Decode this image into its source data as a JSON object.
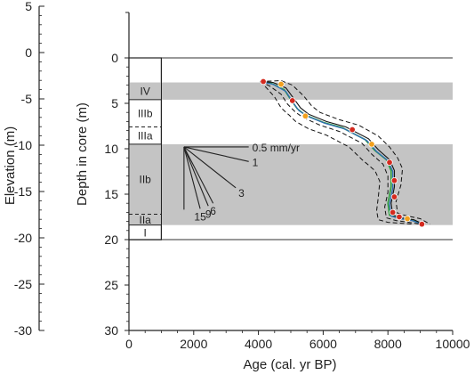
{
  "chart_data": {
    "type": "line",
    "xlabel": "Age (cal. yr BP)",
    "ylabel": "Depth in core (m)",
    "elevation_label": "Elevation (m)",
    "xlim": [
      0,
      10000
    ],
    "ylim": [
      0,
      30
    ],
    "elevation_lim": [
      5,
      -30
    ],
    "x_ticks": [
      0,
      2000,
      4000,
      6000,
      8000,
      10000
    ],
    "y_ticks": [
      0,
      5,
      10,
      15,
      20,
      25,
      30
    ],
    "elevation_ticks": [
      5,
      0,
      -5,
      -10,
      -15,
      -20,
      -25,
      -30
    ],
    "grid": false,
    "colors": {
      "band": "#c4c4c4",
      "model_green": "#2e9e3e",
      "model_blue": "#2f6db5",
      "dates_red": "#d42a1f",
      "dates_orange": "#f2a01d",
      "envelope": "#222222"
    },
    "units": [
      {
        "name": "IV",
        "top": 2.7,
        "bottom": 4.6
      },
      {
        "name": "IIIb",
        "top": 4.6,
        "bottom": 7.6
      },
      {
        "name": "IIIa",
        "top": 7.6,
        "bottom": 9.5
      },
      {
        "name": "IIb",
        "top": 9.5,
        "bottom": 17.2
      },
      {
        "name": "IIa",
        "top": 17.2,
        "bottom": 18.4
      },
      {
        "name": "I",
        "top": 18.4,
        "bottom": 20.0
      }
    ],
    "shaded_bands": [
      {
        "top": 2.7,
        "bottom": 4.6
      },
      {
        "top": 9.5,
        "bottom": 18.4
      }
    ],
    "core_bottom": 20.0,
    "rate_fan": {
      "origin": [
        1700,
        9.8
      ],
      "lines": [
        {
          "label": "0.5 mm/yr",
          "end": [
            3700,
            9.8
          ]
        },
        {
          "label": "1",
          "end": [
            3700,
            11.4
          ]
        },
        {
          "label": "3",
          "end": [
            3300,
            14.3
          ]
        },
        {
          "label": "6",
          "end": [
            2600,
            16.0
          ]
        },
        {
          "label": "9",
          "end": [
            2450,
            16.3
          ]
        },
        {
          "label": "15",
          "end": [
            2200,
            16.6
          ]
        },
        {
          "label": "",
          "end": [
            1700,
            16.7
          ]
        }
      ]
    },
    "series": [
      {
        "values": [
          [
            4050,
            2.6
          ],
          [
            4400,
            2.8
          ],
          [
            4800,
            3.5
          ],
          [
            5000,
            4.6
          ],
          [
            5200,
            5.6
          ],
          [
            5450,
            6.3
          ],
          [
            6000,
            7.1
          ],
          [
            6600,
            7.7
          ],
          [
            7300,
            9.0
          ],
          [
            7600,
            10.2
          ],
          [
            7950,
            11.2
          ],
          [
            8100,
            12.4
          ],
          [
            8100,
            14.2
          ],
          [
            8000,
            16.0
          ],
          [
            8050,
            17.3
          ],
          [
            8300,
            17.6
          ],
          [
            8700,
            17.8
          ],
          [
            9050,
            18.3
          ]
        ]
      },
      {
        "values": [
          [
            4050,
            2.6
          ],
          [
            4450,
            2.9
          ],
          [
            4850,
            3.7
          ],
          [
            5050,
            4.8
          ],
          [
            5250,
            5.8
          ],
          [
            5500,
            6.4
          ],
          [
            6050,
            7.2
          ],
          [
            6650,
            7.8
          ],
          [
            7350,
            9.1
          ],
          [
            7650,
            10.3
          ],
          [
            8000,
            11.3
          ],
          [
            8150,
            12.5
          ],
          [
            8150,
            14.3
          ],
          [
            8050,
            16.1
          ],
          [
            8100,
            17.4
          ],
          [
            8350,
            17.7
          ],
          [
            8750,
            17.9
          ],
          [
            9050,
            18.3
          ]
        ]
      },
      {
        "values": [
          [
            4050,
            2.6
          ],
          [
            4450,
            2.7
          ],
          [
            4850,
            3.3
          ],
          [
            5100,
            4.5
          ],
          [
            5300,
            5.5
          ],
          [
            5550,
            6.2
          ],
          [
            6100,
            7.0
          ],
          [
            6700,
            7.6
          ],
          [
            7400,
            8.9
          ],
          [
            7700,
            10.1
          ],
          [
            8050,
            11.2
          ],
          [
            8200,
            12.4
          ],
          [
            8200,
            14.2
          ],
          [
            8100,
            16.0
          ],
          [
            8150,
            17.3
          ],
          [
            8400,
            17.6
          ],
          [
            8800,
            17.8
          ],
          [
            9100,
            18.3
          ]
        ]
      },
      {
        "values": [
          [
            4050,
            2.6
          ],
          [
            4350,
            3.1
          ],
          [
            4700,
            4.0
          ],
          [
            4900,
            5.1
          ],
          [
            5150,
            6.0
          ],
          [
            5400,
            6.6
          ],
          [
            5900,
            7.4
          ],
          [
            6500,
            8.1
          ],
          [
            7200,
            9.4
          ],
          [
            7500,
            10.6
          ],
          [
            7850,
            11.7
          ],
          [
            8000,
            13.0
          ],
          [
            8000,
            14.8
          ],
          [
            7900,
            16.4
          ],
          [
            7950,
            17.6
          ],
          [
            8250,
            17.9
          ],
          [
            8650,
            18.1
          ],
          [
            9000,
            18.3
          ]
        ]
      },
      {
        "values": [
          [
            4050,
            2.6
          ],
          [
            4700,
            2.5
          ],
          [
            5050,
            3.0
          ],
          [
            5400,
            4.2
          ],
          [
            5650,
            5.3
          ],
          [
            5900,
            6.0
          ],
          [
            6500,
            6.8
          ],
          [
            7100,
            7.4
          ],
          [
            7700,
            8.6
          ],
          [
            8050,
            9.8
          ],
          [
            8300,
            11.0
          ],
          [
            8450,
            12.2
          ],
          [
            8400,
            14.0
          ],
          [
            8250,
            15.8
          ],
          [
            8300,
            17.1
          ],
          [
            8600,
            17.4
          ],
          [
            9000,
            17.7
          ],
          [
            9300,
            18.3
          ]
        ]
      },
      {
        "values": [
          [
            4050,
            2.6
          ],
          [
            4250,
            3.3
          ],
          [
            4500,
            4.3
          ],
          [
            4700,
            5.5
          ],
          [
            4950,
            6.3
          ],
          [
            5150,
            7.0
          ],
          [
            5550,
            7.8
          ],
          [
            6100,
            8.5
          ],
          [
            6800,
            9.8
          ],
          [
            7200,
            11.2
          ],
          [
            7600,
            12.4
          ],
          [
            7750,
            13.6
          ],
          [
            7700,
            15.4
          ],
          [
            7650,
            16.8
          ],
          [
            7700,
            17.8
          ],
          [
            8000,
            18.1
          ],
          [
            8400,
            18.2
          ],
          [
            8800,
            18.3
          ]
        ]
      }
    ],
    "dates_red": [
      [
        4150,
        2.6
      ],
      [
        5050,
        4.7
      ],
      [
        6900,
        7.9
      ],
      [
        8050,
        11.5
      ],
      [
        8200,
        13.5
      ],
      [
        8200,
        15.3
      ],
      [
        8150,
        17.0
      ],
      [
        8350,
        17.5
      ],
      [
        9050,
        18.3
      ]
    ],
    "dates_orange": [
      [
        4700,
        2.9
      ],
      [
        5450,
        6.4
      ],
      [
        7500,
        9.5
      ],
      [
        8600,
        17.7
      ]
    ]
  }
}
